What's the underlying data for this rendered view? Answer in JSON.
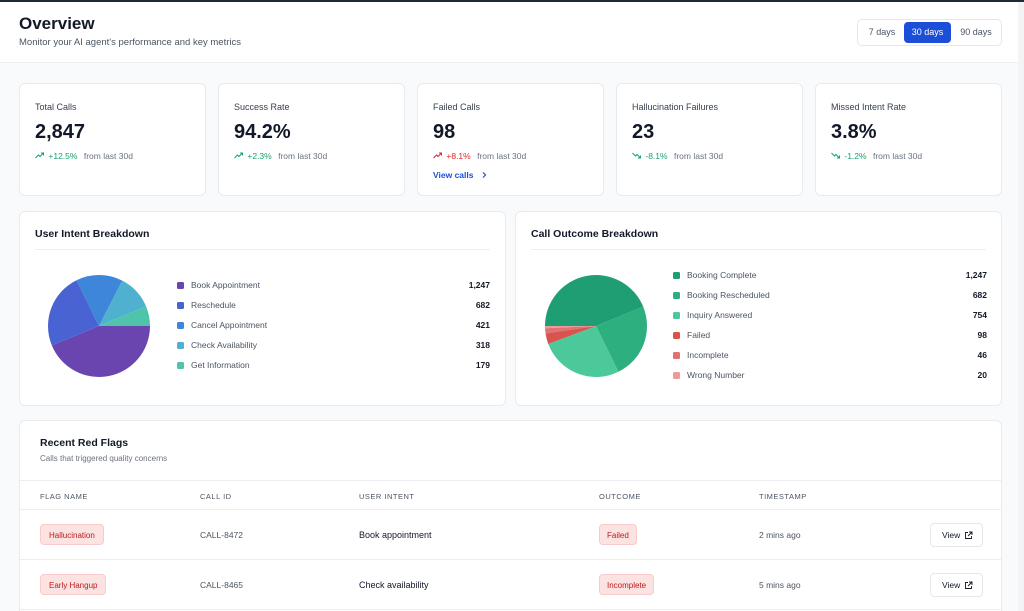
{
  "header": {
    "title": "Overview",
    "subtitle": "Monitor your AI agent's performance and key metrics",
    "ranges": [
      "7 days",
      "30 days",
      "90 days"
    ],
    "active_range": "30 days"
  },
  "stats": [
    {
      "label": "Total Calls",
      "value": "2,847",
      "delta": "+12.5%",
      "trend": "up",
      "tone": "good",
      "from": "from last 30d"
    },
    {
      "label": "Success Rate",
      "value": "94.2%",
      "delta": "+2.3%",
      "trend": "up",
      "tone": "good",
      "from": "from last 30d"
    },
    {
      "label": "Failed Calls",
      "value": "98",
      "delta": "+8.1%",
      "trend": "up",
      "tone": "bad",
      "from": "from last 30d",
      "link": "View calls"
    },
    {
      "label": "Hallucination Failures",
      "value": "23",
      "delta": "-8.1%",
      "trend": "down",
      "tone": "good",
      "from": "from last 30d"
    },
    {
      "label": "Missed Intent Rate",
      "value": "3.8%",
      "delta": "-1.2%",
      "trend": "down",
      "tone": "good",
      "from": "from last 30d"
    }
  ],
  "intent": {
    "title": "User Intent Breakdown",
    "items": [
      {
        "label": "Book Appointment",
        "count": "1,247",
        "value": 1247,
        "color": "#6a45b0"
      },
      {
        "label": "Reschedule",
        "count": "682",
        "value": 682,
        "color": "#4a63d2"
      },
      {
        "label": "Cancel Appointment",
        "count": "421",
        "value": 421,
        "color": "#3d86d9"
      },
      {
        "label": "Check Availability",
        "count": "318",
        "value": 318,
        "color": "#4fb1cf"
      },
      {
        "label": "Get Information",
        "count": "179",
        "value": 179,
        "color": "#4fc4ab"
      }
    ]
  },
  "outcome": {
    "title": "Call Outcome Breakdown",
    "items": [
      {
        "label": "Booking Complete",
        "count": "1,247",
        "value": 1247,
        "color": "#1f9e74"
      },
      {
        "label": "Booking Rescheduled",
        "count": "682",
        "value": 682,
        "color": "#2eaf80"
      },
      {
        "label": "Inquiry Answered",
        "count": "754",
        "value": 754,
        "color": "#4cc99a"
      },
      {
        "label": "Failed",
        "count": "98",
        "value": 98,
        "color": "#d9534f"
      },
      {
        "label": "Incomplete",
        "count": "46",
        "value": 46,
        "color": "#e07272"
      },
      {
        "label": "Wrong Number",
        "count": "20",
        "value": 20,
        "color": "#ec9a9a"
      }
    ]
  },
  "flags": {
    "title": "Recent Red Flags",
    "subtitle": "Calls that triggered quality concerns",
    "columns": [
      "FLAG NAME",
      "CALL ID",
      "USER INTENT",
      "OUTCOME",
      "TIMESTAMP"
    ],
    "rows": [
      {
        "flag": "Hallucination",
        "call_id": "CALL-8472",
        "intent": "Book appointment",
        "outcome": "Failed",
        "timestamp": "2 mins ago",
        "action": "View"
      },
      {
        "flag": "Early Hangup",
        "call_id": "CALL-8465",
        "intent": "Check availability",
        "outcome": "Incomplete",
        "timestamp": "5 mins ago",
        "action": "View"
      }
    ]
  }
}
